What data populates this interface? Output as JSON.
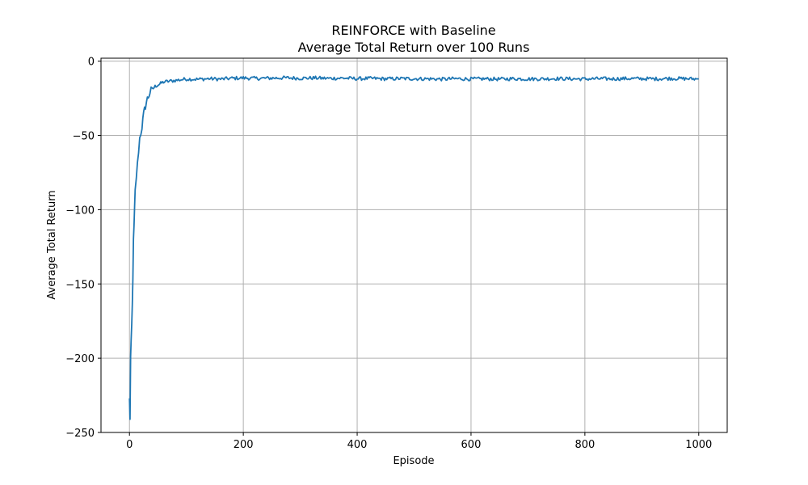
{
  "chart_data": {
    "type": "line",
    "title": "REINFORCE with Baseline",
    "subtitle": "Average Total Return over 100 Runs",
    "xlabel": "Episode",
    "ylabel": "Average Total Return",
    "xlim": [
      -50,
      1050
    ],
    "ylim": [
      -250,
      2
    ],
    "xticks": [
      0,
      200,
      400,
      600,
      800,
      1000
    ],
    "yticks": [
      0,
      -50,
      -100,
      -150,
      -200,
      -250
    ],
    "xtick_labels": [
      "0",
      "200",
      "400",
      "600",
      "800",
      "1000"
    ],
    "ytick_labels": [
      "0",
      "−50",
      "−100",
      "−150",
      "−200",
      "−250"
    ],
    "grid": true,
    "series": [
      {
        "color": "#1f77b4",
        "x": [
          0,
          1,
          2,
          3,
          4,
          5,
          6,
          7,
          8,
          9,
          10,
          12,
          14,
          16,
          18,
          20,
          22,
          25,
          28,
          30,
          33,
          36,
          40,
          45,
          50,
          55,
          60,
          70,
          80,
          90,
          100,
          120,
          140,
          160,
          180,
          200,
          225,
          250,
          275,
          300,
          325,
          350,
          375,
          400,
          425,
          450,
          475,
          500,
          525,
          550,
          575,
          600,
          625,
          650,
          675,
          700,
          725,
          750,
          775,
          800,
          825,
          850,
          875,
          900,
          925,
          950,
          975,
          1000
        ],
        "y": [
          -228,
          -240,
          -200,
          -190,
          -178,
          -165,
          -145,
          -122,
          -112,
          -100,
          -88,
          -78,
          -70,
          -60,
          -52,
          -48,
          -44,
          -36,
          -30,
          -27,
          -24,
          -21,
          -19,
          -17,
          -16,
          -15,
          -14,
          -13.5,
          -13,
          -12.5,
          -12,
          -12.2,
          -11.8,
          -12.1,
          -11.5,
          -11.3,
          -11.6,
          -11.4,
          -11.2,
          -11.5,
          -11.3,
          -11.6,
          -11.4,
          -11.8,
          -11.6,
          -11.9,
          -11.7,
          -11.8,
          -11.9,
          -12.1,
          -11.8,
          -12.0,
          -11.9,
          -12.1,
          -11.8,
          -12.0,
          -11.9,
          -11.7,
          -11.9,
          -12.0,
          -11.8,
          -11.9,
          -11.7,
          -11.8,
          -11.9,
          -11.6,
          -11.8,
          -12.0
        ]
      }
    ]
  }
}
